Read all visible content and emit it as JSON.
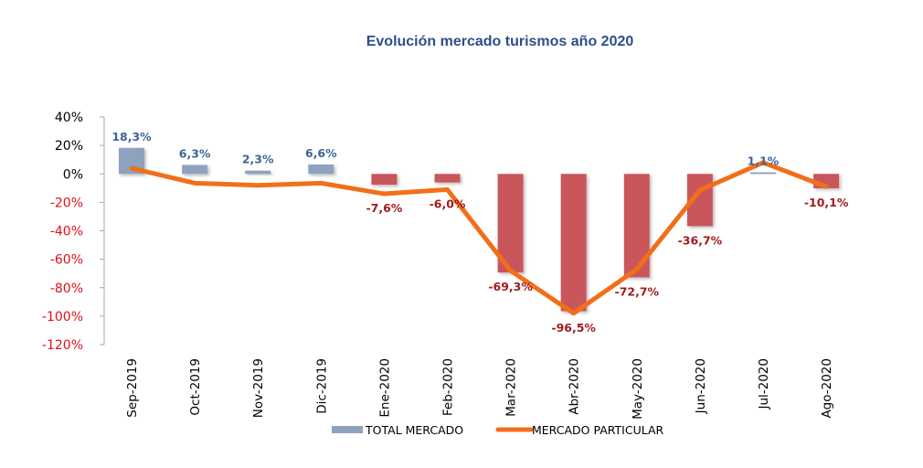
{
  "chart_data": {
    "type": "bar",
    "title": "Evolución mercado turismos año 2020",
    "xlabel": "",
    "ylabel": "",
    "ylim": [
      -120,
      40
    ],
    "yticks": [
      40,
      20,
      0,
      -20,
      -40,
      -60,
      -80,
      -100,
      -120
    ],
    "ytick_labels": [
      "40%",
      "20%",
      "0%",
      "-20%",
      "-40%",
      "-60%",
      "-80%",
      "-100%",
      "-120%"
    ],
    "grid": false,
    "legend_position": "bottom",
    "categories": [
      "Sep-2019",
      "Oct-2019",
      "Nov-2019",
      "Dic-2019",
      "Ene-2020",
      "Feb-2020",
      "Mar-2020",
      "Abr-2020",
      "May-2020",
      "Jun-2020",
      "Jul-2020",
      "Ago-2020"
    ],
    "series": [
      {
        "name": "TOTAL MERCADO",
        "kind": "bar",
        "values": [
          18.3,
          6.3,
          2.3,
          6.6,
          -7.6,
          -6.0,
          -69.3,
          -96.5,
          -72.7,
          -36.7,
          1.1,
          -10.1
        ],
        "data_labels": [
          "18,3%",
          "6,3%",
          "2,3%",
          "6,6%",
          "-7,6%",
          "-6,0%",
          "-69,3%",
          "-96,5%",
          "-72,7%",
          "-36,7%",
          "1,1%",
          "-10,1%"
        ],
        "color_positive": "#8ea2bf",
        "color_negative": "#c9575a"
      },
      {
        "name": "MERCADO PARTICULAR",
        "kind": "line",
        "values": [
          4,
          -6.5,
          -8,
          -6.5,
          -14,
          -11,
          -68,
          -98,
          -67,
          -11.5,
          8,
          -9
        ],
        "color": "#f26f1a"
      }
    ],
    "label_colors": {
      "positive": "#3e6496",
      "negative": "#a01c1c"
    },
    "tick_colors": {
      "positive": "#000000",
      "negative": "#e0101a"
    },
    "axis_color": "#a6a6a6"
  }
}
